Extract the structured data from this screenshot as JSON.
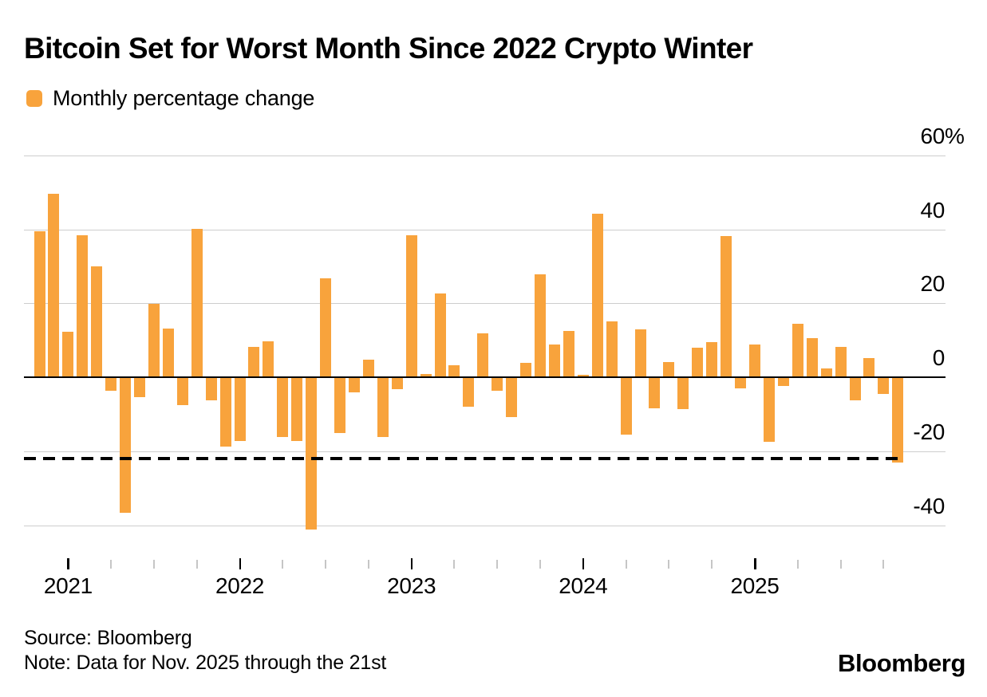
{
  "title": "Bitcoin Set for Worst Month Since 2022 Crypto Winter",
  "legend": {
    "label": "Monthly percentage change"
  },
  "footer": {
    "source_line": "Source: Bloomberg",
    "note_line": "Note: Data for Nov. 2025 through the 21st",
    "brand": "Bloomberg"
  },
  "colors": {
    "bar": "#F8A33C",
    "gridline": "#cdcdcd",
    "zero_line": "#000000",
    "reference_line": "#000000",
    "tick_major": "#000000",
    "tick_minor": "#c6c6c6",
    "text": "#000000",
    "background": "#ffffff"
  },
  "chart_data": {
    "type": "bar",
    "title": "Bitcoin Set for Worst Month Since 2022 Crypto Winter",
    "series_name": "Monthly percentage change",
    "unit": "%",
    "grid": "horizontal",
    "legend_position": "top-left",
    "ylim": [
      -40,
      60
    ],
    "y_ticks": [
      {
        "value": 60,
        "label": "60",
        "suffix": "%"
      },
      {
        "value": 40,
        "label": "40",
        "suffix": ""
      },
      {
        "value": 20,
        "label": "20",
        "suffix": ""
      },
      {
        "value": 0,
        "label": "0",
        "suffix": ""
      },
      {
        "value": -20,
        "label": "-20",
        "suffix": ""
      },
      {
        "value": -40,
        "label": "-40",
        "suffix": ""
      }
    ],
    "x_year_labels": [
      "2021",
      "2022",
      "2023",
      "2024",
      "2025"
    ],
    "reference_line": {
      "value": -21.8,
      "style": "dashed"
    },
    "x": [
      "2020-11",
      "2020-12",
      "2021-01",
      "2021-02",
      "2021-03",
      "2021-04",
      "2021-05",
      "2021-06",
      "2021-07",
      "2021-08",
      "2021-09",
      "2021-10",
      "2021-11",
      "2021-12",
      "2022-01",
      "2022-02",
      "2022-03",
      "2022-04",
      "2022-05",
      "2022-06",
      "2022-07",
      "2022-08",
      "2022-09",
      "2022-10",
      "2022-11",
      "2022-12",
      "2023-01",
      "2023-02",
      "2023-03",
      "2023-04",
      "2023-05",
      "2023-06",
      "2023-07",
      "2023-08",
      "2023-09",
      "2023-10",
      "2023-11",
      "2023-12",
      "2024-01",
      "2024-02",
      "2024-03",
      "2024-04",
      "2024-05",
      "2024-06",
      "2024-07",
      "2024-08",
      "2024-09",
      "2024-10",
      "2024-11",
      "2024-12",
      "2025-01",
      "2025-02",
      "2025-03",
      "2025-04",
      "2025-05",
      "2025-06",
      "2025-07",
      "2025-08",
      "2025-09",
      "2025-10",
      "2025-11"
    ],
    "values": [
      39.5,
      49.5,
      12.3,
      38.5,
      30.1,
      -3.5,
      -36.5,
      -5.4,
      19.9,
      13.1,
      -7.5,
      40.2,
      -6.1,
      -18.7,
      -17.1,
      8.2,
      9.7,
      -16.1,
      -17.2,
      -41.0,
      26.8,
      -15.1,
      -4.0,
      4.9,
      -16.0,
      -3.1,
      38.5,
      0.9,
      22.6,
      3.2,
      -7.8,
      12.0,
      -3.6,
      -10.8,
      3.9,
      27.8,
      9.0,
      12.6,
      0.6,
      44.3,
      15.2,
      -15.4,
      12.9,
      -8.3,
      4.2,
      -8.5,
      8.1,
      9.5,
      38.2,
      -2.9,
      9.0,
      -17.4,
      -2.4,
      14.5,
      10.6,
      2.5,
      8.2,
      -6.2,
      5.2,
      -4.5,
      -23.0
    ]
  }
}
